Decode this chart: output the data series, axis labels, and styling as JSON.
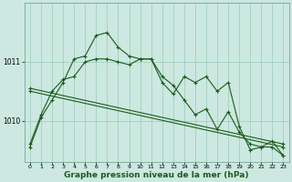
{
  "background_color": "#cce8e0",
  "plot_bg_color": "#cce8e0",
  "grid_color": "#99ccbb",
  "line_color": "#1a5c1a",
  "xlabel": "Graphe pression niveau de la mer (hPa)",
  "xlabel_fontsize": 6.5,
  "xlim": [
    -0.5,
    23.5
  ],
  "ylim": [
    1009.3,
    1012.0
  ],
  "yticks": [
    1010,
    1011
  ],
  "xticks": [
    0,
    1,
    2,
    3,
    4,
    5,
    6,
    7,
    8,
    9,
    10,
    11,
    12,
    13,
    14,
    15,
    16,
    17,
    18,
    19,
    20,
    21,
    22,
    23
  ],
  "series1_jagged": {
    "x": [
      0,
      1,
      2,
      3,
      4,
      5,
      6,
      7,
      8,
      9,
      10,
      11,
      12,
      13,
      14,
      15,
      16,
      17,
      18,
      19,
      20,
      21,
      22,
      23
    ],
    "y": [
      1009.55,
      1010.05,
      1010.35,
      1010.65,
      1011.05,
      1011.1,
      1011.45,
      1011.5,
      1011.25,
      1011.1,
      1011.05,
      1011.05,
      1010.65,
      1010.45,
      1010.75,
      1010.65,
      1010.75,
      1010.5,
      1010.65,
      1009.9,
      1009.5,
      1009.55,
      1009.65,
      1009.4
    ]
  },
  "series2_medium": {
    "x": [
      0,
      1,
      2,
      3,
      4,
      5,
      6,
      7,
      8,
      9,
      10,
      11,
      12,
      13,
      14,
      15,
      16,
      17,
      18,
      19,
      20,
      21,
      22,
      23
    ],
    "y": [
      1009.6,
      1010.1,
      1010.5,
      1010.7,
      1010.75,
      1011.0,
      1011.05,
      1011.05,
      1011.0,
      1010.95,
      1011.05,
      1011.05,
      1010.75,
      1010.6,
      1010.35,
      1010.1,
      1010.2,
      1009.85,
      1010.15,
      1009.8,
      1009.6,
      1009.55,
      1009.55,
      1009.4
    ]
  },
  "series3_trend1": {
    "x": [
      0,
      23
    ],
    "y": [
      1010.55,
      1009.6
    ]
  },
  "series4_trend2": {
    "x": [
      0,
      23
    ],
    "y": [
      1010.5,
      1009.55
    ]
  }
}
